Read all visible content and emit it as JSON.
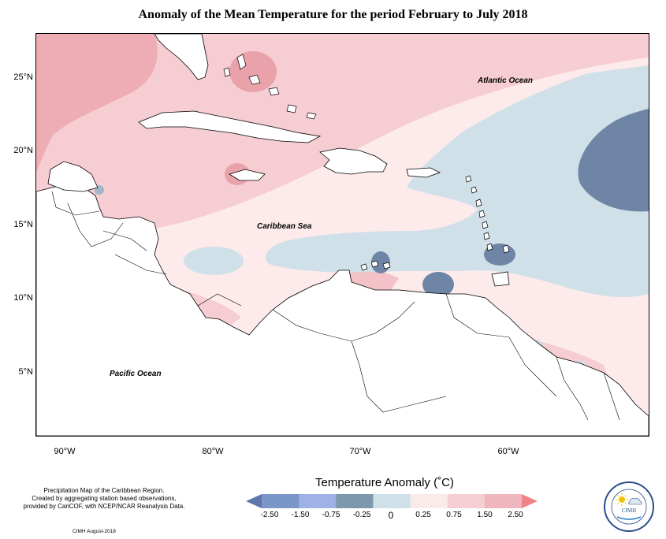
{
  "title": "Anomaly of the Mean Temperature for the period February to July 2018",
  "map": {
    "ocean_labels": {
      "atlantic": "Atlantic Ocean",
      "caribbean": "Caribbean Sea",
      "pacific": "Pacific Ocean"
    },
    "lat_ticks": [
      "25°N",
      "20°N",
      "15°N",
      "10°N",
      "5°N"
    ],
    "lon_ticks": [
      "90°W",
      "80°W",
      "70°W",
      "60°W"
    ]
  },
  "legend": {
    "title": "Temperature Anomaly (˚C)",
    "tick_labels": [
      "-2.50",
      "-1.50",
      "-0.75",
      "-0.25",
      "0",
      "0.25",
      "0.75",
      "1.50",
      "2.50"
    ],
    "colors": [
      "#5f76a8",
      "#7b96c9",
      "#9fb1e6",
      "#7d97ad",
      "#cfe0e8",
      "#fbeaea",
      "#f5cfd3",
      "#efb6bd",
      "#f0838a"
    ],
    "color_roles": {
      "strong_negative": "#6e85a6",
      "negative": "#cfe0e8",
      "near_zero": "#fdeaea",
      "positive": "#f6cdd2",
      "strong_positive": "#e9a6ad"
    }
  },
  "footer": {
    "note_lines": [
      "Precipitation Map of the Caribbean Region.",
      "Created by aggregating station based observations,",
      "provided by CariCOF, with NCEP/NCAR Reanalysis Data."
    ],
    "credit": "CIMH August-2018"
  },
  "logo": {
    "name": "CIMH",
    "ring_text": "Caribbean Institute for Meteorology and Hydrology"
  }
}
